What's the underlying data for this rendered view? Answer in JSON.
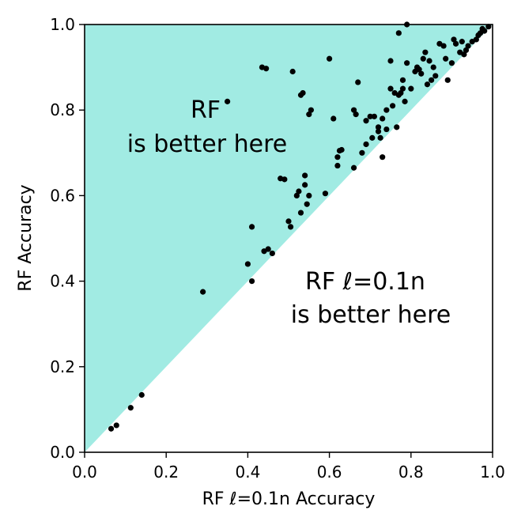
{
  "chart_data": {
    "type": "scatter",
    "title": "",
    "xlabel": "RF ℓ=0.1n Accuracy",
    "ylabel": "RF Accuracy",
    "xlim": [
      0.0,
      1.0
    ],
    "ylim": [
      0.0,
      1.0
    ],
    "x_ticks": [
      "0.0",
      "0.2",
      "0.4",
      "0.6",
      "0.8",
      "1.0"
    ],
    "y_ticks": [
      "0.0",
      "0.2",
      "0.4",
      "0.6",
      "0.8",
      "1.0"
    ],
    "grid": false,
    "region_color": "#a1ebe3",
    "point_color": "#000000",
    "annotations": {
      "upper_region": [
        "RF",
        "is better here"
      ],
      "lower_region": [
        "RF ℓ=0.1n",
        "is better here"
      ]
    },
    "points": [
      [
        0.065,
        0.055
      ],
      [
        0.078,
        0.063
      ],
      [
        0.113,
        0.104
      ],
      [
        0.14,
        0.134
      ],
      [
        0.29,
        0.375
      ],
      [
        0.35,
        0.82
      ],
      [
        0.4,
        0.44
      ],
      [
        0.41,
        0.4
      ],
      [
        0.41,
        0.527
      ],
      [
        0.435,
        0.9
      ],
      [
        0.445,
        0.897
      ],
      [
        0.44,
        0.47
      ],
      [
        0.45,
        0.475
      ],
      [
        0.46,
        0.465
      ],
      [
        0.48,
        0.64
      ],
      [
        0.49,
        0.638
      ],
      [
        0.5,
        0.54
      ],
      [
        0.505,
        0.527
      ],
      [
        0.51,
        0.89
      ],
      [
        0.52,
        0.6
      ],
      [
        0.525,
        0.61
      ],
      [
        0.53,
        0.56
      ],
      [
        0.53,
        0.835
      ],
      [
        0.535,
        0.84
      ],
      [
        0.54,
        0.625
      ],
      [
        0.54,
        0.647
      ],
      [
        0.545,
        0.58
      ],
      [
        0.55,
        0.6
      ],
      [
        0.55,
        0.79
      ],
      [
        0.555,
        0.8
      ],
      [
        0.59,
        0.605
      ],
      [
        0.6,
        0.92
      ],
      [
        0.61,
        0.78
      ],
      [
        0.62,
        0.67
      ],
      [
        0.62,
        0.69
      ],
      [
        0.625,
        0.705
      ],
      [
        0.63,
        0.707
      ],
      [
        0.66,
        0.665
      ],
      [
        0.66,
        0.8
      ],
      [
        0.665,
        0.79
      ],
      [
        0.67,
        0.865
      ],
      [
        0.68,
        0.7
      ],
      [
        0.69,
        0.72
      ],
      [
        0.69,
        0.775
      ],
      [
        0.7,
        0.785
      ],
      [
        0.705,
        0.735
      ],
      [
        0.71,
        0.785
      ],
      [
        0.72,
        0.75
      ],
      [
        0.72,
        0.76
      ],
      [
        0.725,
        0.735
      ],
      [
        0.73,
        0.69
      ],
      [
        0.73,
        0.78
      ],
      [
        0.74,
        0.755
      ],
      [
        0.74,
        0.8
      ],
      [
        0.75,
        0.85
      ],
      [
        0.75,
        0.915
      ],
      [
        0.755,
        0.81
      ],
      [
        0.76,
        0.84
      ],
      [
        0.765,
        0.76
      ],
      [
        0.77,
        0.98
      ],
      [
        0.77,
        0.835
      ],
      [
        0.775,
        0.84
      ],
      [
        0.78,
        0.85
      ],
      [
        0.78,
        0.87
      ],
      [
        0.785,
        0.82
      ],
      [
        0.79,
        0.91
      ],
      [
        0.79,
        1.0
      ],
      [
        0.8,
        0.85
      ],
      [
        0.81,
        0.89
      ],
      [
        0.815,
        0.9
      ],
      [
        0.82,
        0.895
      ],
      [
        0.825,
        0.885
      ],
      [
        0.83,
        0.92
      ],
      [
        0.835,
        0.935
      ],
      [
        0.84,
        0.86
      ],
      [
        0.845,
        0.915
      ],
      [
        0.85,
        0.87
      ],
      [
        0.855,
        0.9
      ],
      [
        0.86,
        0.88
      ],
      [
        0.87,
        0.955
      ],
      [
        0.88,
        0.95
      ],
      [
        0.885,
        0.92
      ],
      [
        0.89,
        0.87
      ],
      [
        0.9,
        0.91
      ],
      [
        0.905,
        0.965
      ],
      [
        0.91,
        0.955
      ],
      [
        0.92,
        0.935
      ],
      [
        0.925,
        0.96
      ],
      [
        0.93,
        0.93
      ],
      [
        0.935,
        0.94
      ],
      [
        0.94,
        0.95
      ],
      [
        0.95,
        0.96
      ],
      [
        0.96,
        0.965
      ],
      [
        0.965,
        0.975
      ],
      [
        0.97,
        0.98
      ],
      [
        0.975,
        0.99
      ],
      [
        0.98,
        0.985
      ],
      [
        0.99,
        0.995
      ]
    ]
  }
}
